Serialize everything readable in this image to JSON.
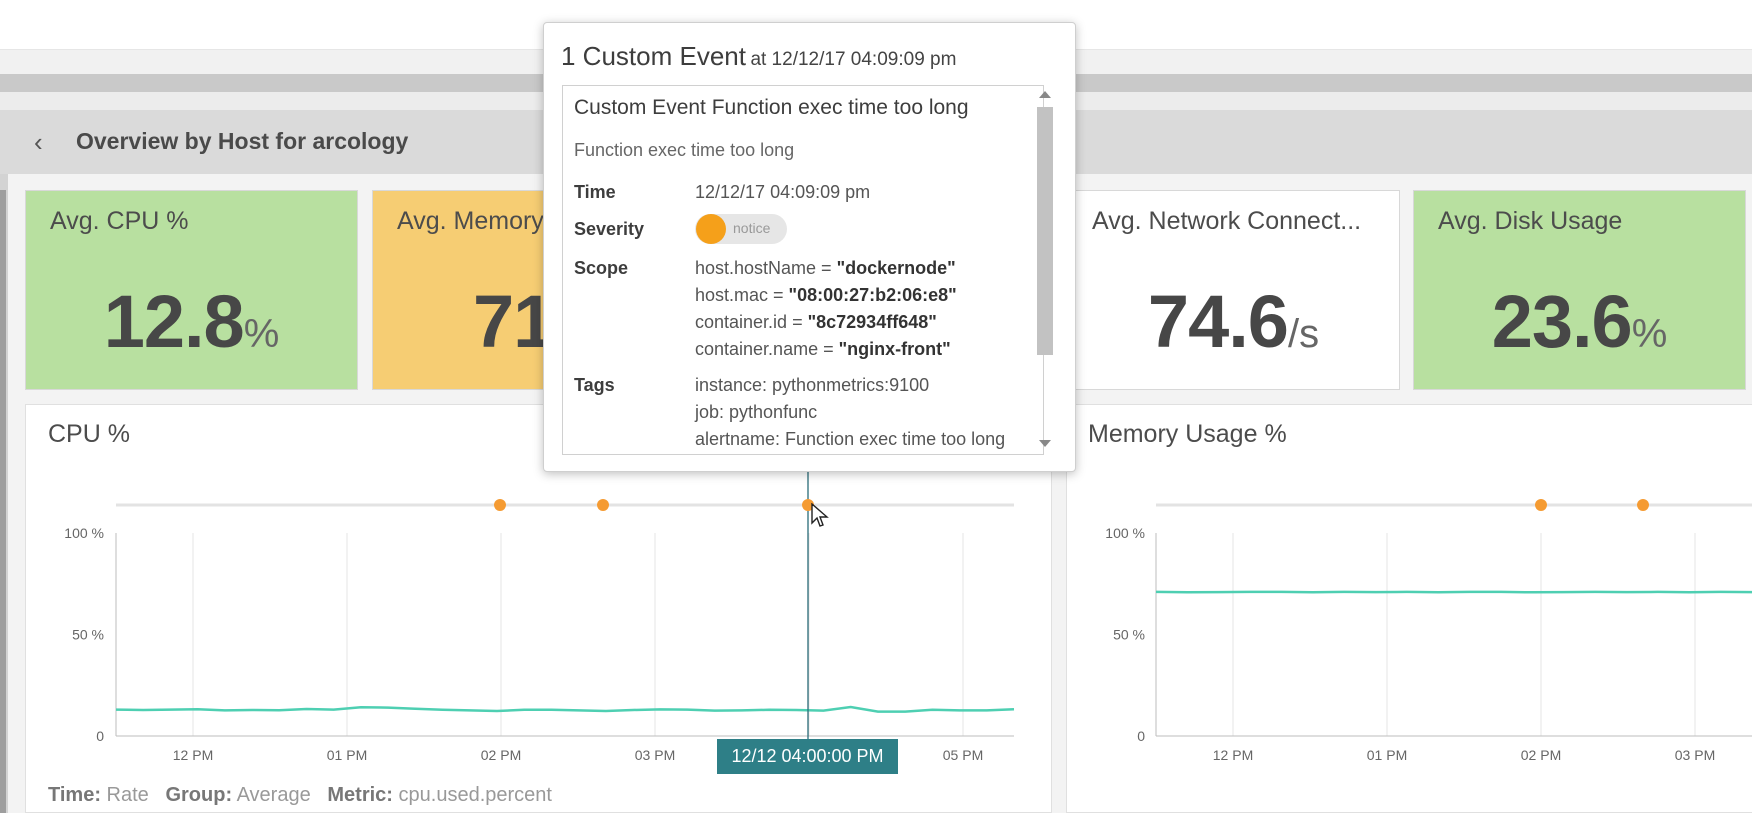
{
  "header": {
    "title": "Overview by Host for arcology",
    "back_icon": "chevron-left-icon"
  },
  "colors": {
    "green": "#b8e0a0",
    "orange": "#f6cd73",
    "line": "#4ecfb2",
    "event": "#f59b32",
    "cursor_label_bg": "#2e7f87"
  },
  "kpis": [
    {
      "label": "Avg. CPU %",
      "value": "12.8",
      "unit": "%",
      "status": "green"
    },
    {
      "label": "Avg. Memory",
      "value": "71.",
      "unit": "",
      "status": "orange"
    },
    {
      "label": "Avg. Network Connect...",
      "value": "74.6",
      "unit": "/s",
      "status": "white"
    },
    {
      "label": "Avg. Disk Usage",
      "value": "23.6",
      "unit": "%",
      "status": "green"
    }
  ],
  "popup": {
    "count_title": "1 Custom Event",
    "timestamp": "at 12/12/17 04:09:09 pm",
    "event_title": "Custom Event Function exec time too long",
    "description": "Function exec time too long",
    "time_label": "Time",
    "time_value": "12/12/17 04:09:09 pm",
    "severity_label": "Severity",
    "severity_value": "notice",
    "scope_label": "Scope",
    "scope": [
      {
        "key": "host.hostName = ",
        "value": "\"dockernode\""
      },
      {
        "key": "host.mac = ",
        "value": "\"08:00:27:b2:06:e8\""
      },
      {
        "key": "container.id = ",
        "value": "\"8c72934ff648\""
      },
      {
        "key": "container.name = ",
        "value": "\"nginx-front\""
      }
    ],
    "tags_label": "Tags",
    "tags": [
      "instance: pythonmetrics:9100",
      "job: pythonfunc",
      "alertname: Function exec time too long"
    ]
  },
  "chart_data": [
    {
      "type": "line",
      "title": "CPU %",
      "y_ticks": [
        "100 %",
        "50 %",
        "0"
      ],
      "x_ticks": [
        "12 PM",
        "01 PM",
        "02 PM",
        "03 PM",
        "05 PM"
      ],
      "ylim": [
        0,
        100
      ],
      "series": [
        {
          "values": [
            13,
            12.8,
            13,
            13.2,
            12.6,
            12.8,
            12.7,
            13.3,
            13,
            14.2,
            14,
            13.4,
            12.9,
            12.6,
            12.3,
            12.9,
            12.9,
            12.6,
            12.3,
            12.8,
            13.1,
            13,
            12.5,
            12.6,
            12.9,
            12.8,
            12.5,
            14.3,
            12,
            12,
            12.9,
            12.6,
            12.6,
            13.2
          ]
        }
      ],
      "events": [
        "01:55 PM",
        "02:35 PM",
        "04:09 PM"
      ],
      "cursor_label": "12/12 04:00:00 PM",
      "footer": {
        "time_label": "Time:",
        "time_value": "Rate",
        "group_label": "Group:",
        "group_value": "Average",
        "metric_label": "Metric:",
        "metric_value": "cpu.used.percent"
      }
    },
    {
      "type": "line",
      "title": "Memory Usage %",
      "y_ticks": [
        "100 %",
        "50 %",
        "0"
      ],
      "x_ticks": [
        "12 PM",
        "01 PM",
        "02 PM",
        "03 PM"
      ],
      "ylim": [
        0,
        100
      ],
      "series": [
        {
          "values": [
            71,
            70.8,
            70.9,
            71,
            71,
            70.8,
            71,
            70.9,
            71,
            70.8,
            71,
            71,
            70.8,
            70.9,
            71,
            70.9,
            71,
            70.8,
            71,
            70.9
          ]
        }
      ],
      "events": [
        "01:55 PM",
        "02:35 PM"
      ]
    }
  ]
}
